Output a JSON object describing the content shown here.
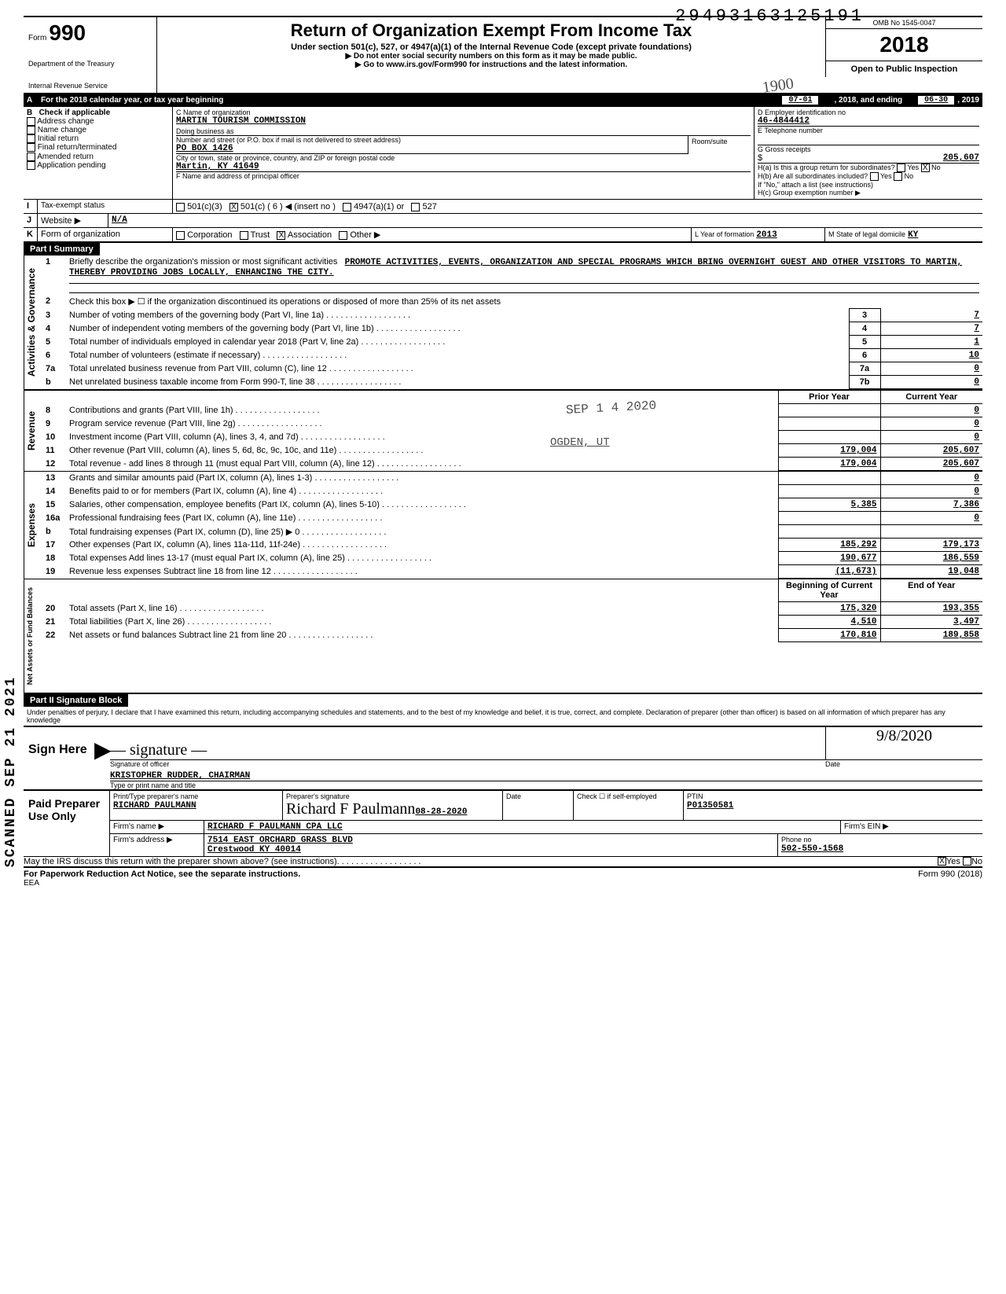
{
  "dln": "29493163125191",
  "form": {
    "no": "990",
    "title": "Return of Organization Exempt From Income Tax",
    "sub": "Under section 501(c), 527, or 4947(a)(1) of the Internal Revenue Code (except private foundations)",
    "warn": "▶ Do not enter social security numbers on this form as it may be made public.",
    "goto": "▶ Go to www.irs.gov/Form990 for instructions and the latest information.",
    "dept1": "Department of the Treasury",
    "dept2": "Internal Revenue Service"
  },
  "omb": "OMB No 1545-0047",
  "year": "2018",
  "open": "Open to Public Inspection",
  "period": {
    "label": "For the 2018 calendar year, or tax year beginning",
    "begin": "07-01",
    "mid": ", 2018, and ending",
    "end": "06-30",
    "end2": ", 2019"
  },
  "checkB": {
    "label": "Check if applicable",
    "items": [
      "Address change",
      "Name change",
      "Initial return",
      "Final return/terminated",
      "Amended return",
      "Application pending"
    ]
  },
  "org": {
    "name_label": "C  Name of organization",
    "name": "MARTIN TOURISM COMMISSION",
    "dba_label": "Doing business as",
    "dba": "",
    "street_label": "Number and street (or P.O. box if mail is not delivered to street address)",
    "street": "PO BOX 1426",
    "room_label": "Room/suite",
    "room": "",
    "city_label": "City or town, state or province, country, and ZIP or foreign postal code",
    "city": "Martin, KY 41649",
    "officer_label": "F  Name and address of principal officer",
    "ein_label": "D  Employer identification no",
    "ein": "46-4844412",
    "tel_label": "E  Telephone number",
    "tel": "",
    "gross_label": "G  Gross receipts",
    "gross": "205,607",
    "h_a": "H(a) Is this a group return for subordinates?",
    "h_a_yes": "Yes",
    "h_a_no": "No",
    "h_b": "H(b) Are all subordinates included?",
    "h_b_note": "If \"No,\" attach a list (see instructions)",
    "h_c": "H(c)  Group exemption number  ▶"
  },
  "tax_status": {
    "label": "Tax-exempt status",
    "opts": [
      "501(c)(3)",
      "501(c) ( 6 )  ◀ (insert no )",
      "4947(a)(1) or",
      "527"
    ]
  },
  "website": {
    "label": "Website ▶",
    "value": "N/A"
  },
  "formK": {
    "label": "Form of organization",
    "opts": [
      "Corporation",
      "Trust",
      "Association",
      "Other ▶"
    ],
    "yr_label": "L  Year of formation",
    "yr": "2013",
    "dom_label": "M  State of legal domicile",
    "dom": "KY"
  },
  "part1": "Part I    Summary",
  "mission": {
    "label": "Briefly describe the organization's mission or most significant activities",
    "text": "PROMOTE ACTIVITIES, EVENTS, ORGANIZATION AND SPECIAL PROGRAMS WHICH BRING OVERNIGHT GUEST AND OTHER VISITORS TO MARTIN, THEREBY PROVIDING JOBS LOCALLY, ENHANCING THE CITY."
  },
  "line2": "Check this box ▶ ☐ if the organization discontinued its operations or disposed of more than 25% of its net assets",
  "gov_lines": [
    {
      "n": "3",
      "t": "Number of voting members of the governing body (Part VI, line 1a)",
      "box": "3",
      "v": "7"
    },
    {
      "n": "4",
      "t": "Number of independent voting members of the governing body (Part VI, line 1b)",
      "box": "4",
      "v": "7"
    },
    {
      "n": "5",
      "t": "Total number of individuals employed in calendar year 2018 (Part V, line 2a)",
      "box": "5",
      "v": "1"
    },
    {
      "n": "6",
      "t": "Total number of volunteers (estimate if necessary)",
      "box": "6",
      "v": "10"
    },
    {
      "n": "7a",
      "t": "Total unrelated business revenue from Part VIII, column (C), line 12",
      "box": "7a",
      "v": "0"
    },
    {
      "n": "b",
      "t": "Net unrelated business taxable income from Form 990-T, line 38",
      "box": "7b",
      "v": "0"
    }
  ],
  "rev_head": {
    "py": "Prior Year",
    "cy": "Current Year"
  },
  "rev_lines": [
    {
      "n": "8",
      "t": "Contributions and grants (Part VIII, line 1h)",
      "py": "",
      "cy": "0"
    },
    {
      "n": "9",
      "t": "Program service revenue (Part VIII, line 2g)",
      "py": "",
      "cy": "0"
    },
    {
      "n": "10",
      "t": "Investment income (Part VIII, column (A), lines 3, 4, and 7d)",
      "py": "",
      "cy": "0"
    },
    {
      "n": "11",
      "t": "Other revenue (Part VIII, column (A), lines 5, 6d, 8c, 9c, 10c, and 11e)",
      "py": "179,004",
      "cy": "205,607"
    },
    {
      "n": "12",
      "t": "Total revenue - add lines 8 through 11 (must equal Part VIII, column (A), line 12)",
      "py": "179,004",
      "cy": "205,607"
    }
  ],
  "exp_lines": [
    {
      "n": "13",
      "t": "Grants and similar amounts paid (Part IX, column (A), lines 1-3)",
      "py": "",
      "cy": "0"
    },
    {
      "n": "14",
      "t": "Benefits paid to or for members (Part IX, column (A), line 4)",
      "py": "",
      "cy": "0"
    },
    {
      "n": "15",
      "t": "Salaries, other compensation, employee benefits (Part IX, column (A), lines 5-10)",
      "py": "5,385",
      "cy": "7,386"
    },
    {
      "n": "16a",
      "t": "Professional fundraising fees (Part IX, column (A), line 11e)",
      "py": "",
      "cy": "0"
    },
    {
      "n": "b",
      "t": "Total fundraising expenses (Part IX, column (D), line 25)  ▶            0",
      "py": "",
      "cy": ""
    },
    {
      "n": "17",
      "t": "Other expenses (Part IX, column (A), lines 11a-11d, 11f-24e)",
      "py": "185,292",
      "cy": "179,173"
    },
    {
      "n": "18",
      "t": "Total expenses  Add lines 13-17 (must equal Part IX, column (A), line 25)",
      "py": "190,677",
      "cy": "186,559"
    },
    {
      "n": "19",
      "t": "Revenue less expenses   Subtract line 18 from line 12",
      "py": "(11,673)",
      "cy": "19,048"
    }
  ],
  "bal_head": {
    "py": "Beginning of Current Year",
    "cy": "End of Year"
  },
  "bal_lines": [
    {
      "n": "20",
      "t": "Total assets (Part X, line 16)",
      "py": "175,320",
      "cy": "193,355"
    },
    {
      "n": "21",
      "t": "Total liabilities (Part X, line 26)",
      "py": "4,510",
      "cy": "3,497"
    },
    {
      "n": "22",
      "t": "Net assets or fund balances  Subtract line 21 from line 20",
      "py": "170,810",
      "cy": "189,858"
    }
  ],
  "part2": "Part II    Signature Block",
  "perjury": "Under penalties of perjury, I declare that I have examined this return, including accompanying schedules and statements, and to the best of my knowledge and belief, it is true, correct, and complete. Declaration of preparer (other than officer) is based on all information of which preparer has any knowledge",
  "sign": {
    "here": "Sign Here",
    "off": "Signature of officer",
    "date": "Date",
    "name_label": "Type or print name and title",
    "name": "KRISTOPHER RUDDER, CHAIRMAN",
    "sig_date": "9/8/2020"
  },
  "paid": {
    "label": "Paid Preparer Use Only",
    "pn_label": "Print/Type preparer's name",
    "pn": "RICHARD PAULMANN",
    "sig_label": "Preparer's signature",
    "sig": "Richard F Paulmann",
    "sig_date": "08-28-2020",
    "date_label": "Date",
    "check_label": "Check ☐ if self-employed",
    "ptin_label": "PTIN",
    "ptin": "P01350581",
    "firm_label": "Firm's name ▶",
    "firm": "RICHARD F PAULMANN CPA LLC",
    "ein_label": "Firm's EIN ▶",
    "ein": "",
    "addr_label": "Firm's address ▶",
    "addr1": "7514 EAST ORCHARD GRASS BLVD",
    "addr2": "Crestwood KY 40014",
    "phone_label": "Phone no",
    "phone": "502-550-1568"
  },
  "discuss": "May the IRS discuss this return with the preparer shown above? (see instructions)",
  "discuss_yes": "Yes",
  "discuss_no": "No",
  "footer1": "For Paperwork Reduction Act Notice, see the separate instructions.",
  "footer2": "Form 990 (2018)",
  "eea": "EEA",
  "stamps": {
    "rec": "SEP 1 4 2020",
    "ogden": "OGDEN, UT",
    "scanned": "SCANNED SEP 21 2021",
    "hand": "1900"
  },
  "side": {
    "ag": "Activities & Governance",
    "rev": "Revenue",
    "exp": "Expenses",
    "nab": "Net Assets or Fund Balances"
  }
}
